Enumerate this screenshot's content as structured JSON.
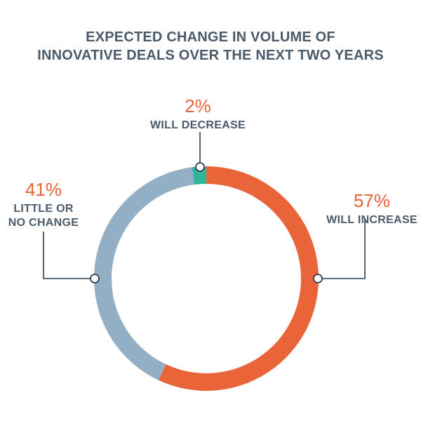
{
  "chart_data": {
    "type": "pie",
    "title_lines": [
      "EXPECTED CHANGE IN VOLUME OF",
      "INNOVATIVE DEALS OVER THE NEXT TWO YEARS"
    ],
    "slices": [
      {
        "label": "WILL INCREASE",
        "label_lines": [
          "WILL INCREASE"
        ],
        "value": 57,
        "value_label": "57%",
        "color": "#ea6439"
      },
      {
        "label": "LITTLE OR NO CHANGE",
        "label_lines": [
          "LITTLE OR",
          "NO CHANGE"
        ],
        "value": 41,
        "value_label": "41%",
        "color": "#93afc5"
      },
      {
        "label": "WILL DECREASE",
        "label_lines": [
          "WILL DECREASE"
        ],
        "value": 2,
        "value_label": "2%",
        "color": "#2fb59b"
      }
    ],
    "donut": true,
    "start": "top"
  },
  "colors": {
    "title": "#4b5a6a",
    "label_text": "#4b5a6a",
    "leader_line": "#2c3e50",
    "percent_text": "#ea6439"
  }
}
